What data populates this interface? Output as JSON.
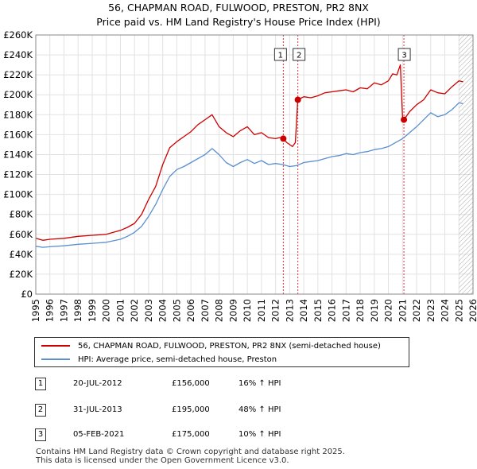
{
  "title_line1": "56, CHAPMAN ROAD, FULWOOD, PRESTON, PR2 8NX",
  "title_line2": "Price paid vs. HM Land Registry's House Price Index (HPI)",
  "colors": {
    "property": "#cc0000",
    "hpi": "#5a8fd0",
    "marker_line": "#cc0000",
    "hatch": "#999999"
  },
  "chart_data": {
    "type": "line",
    "title": "Price paid vs. HM Land Registry's House Price Index (HPI)",
    "xlabel": "",
    "ylabel": "",
    "xlim": [
      1995,
      2026
    ],
    "ylim": [
      0,
      260000
    ],
    "y_ticks": [
      0,
      20000,
      40000,
      60000,
      80000,
      100000,
      120000,
      140000,
      160000,
      180000,
      200000,
      220000,
      240000,
      260000
    ],
    "y_tick_labels": [
      "£0",
      "£20K",
      "£40K",
      "£60K",
      "£80K",
      "£100K",
      "£120K",
      "£140K",
      "£160K",
      "£180K",
      "£200K",
      "£220K",
      "£240K",
      "£260K"
    ],
    "x_ticks": [
      1995,
      1996,
      1997,
      1998,
      1999,
      2000,
      2001,
      2002,
      2003,
      2004,
      2005,
      2006,
      2007,
      2008,
      2009,
      2010,
      2011,
      2012,
      2013,
      2014,
      2015,
      2016,
      2017,
      2018,
      2019,
      2020,
      2021,
      2022,
      2023,
      2024,
      2025,
      2026
    ],
    "x_tick_labels": [
      "1995",
      "1996",
      "1997",
      "1998",
      "1999",
      "2000",
      "2001",
      "2002",
      "2003",
      "2004",
      "2005",
      "2006",
      "2007",
      "2008",
      "2009",
      "2010",
      "2011",
      "2012",
      "2013",
      "2014",
      "2015",
      "2016",
      "2017",
      "2018",
      "2019",
      "2020",
      "2021",
      "2022",
      "2023",
      "2024",
      "2025",
      "2026"
    ],
    "grid": true,
    "hatched_from": 2025.0,
    "series": [
      {
        "name": "56, CHAPMAN ROAD, FULWOOD, PRESTON, PR2 8NX (semi-detached house)",
        "x": [
          1995,
          1995.5,
          1996,
          1997,
          1998,
          1999,
          2000,
          2000.5,
          2001,
          2001.5,
          2002,
          2002.5,
          2003,
          2003.5,
          2004,
          2004.5,
          2005,
          2005.5,
          2006,
          2006.5,
          2007,
          2007.5,
          2008,
          2008.5,
          2009,
          2009.5,
          2010,
          2010.5,
          2011,
          2011.5,
          2012,
          2012.3,
          2012.55,
          2012.8,
          2013,
          2013.2,
          2013.4,
          2013.58,
          2014,
          2014.5,
          2015,
          2015.5,
          2016,
          2016.5,
          2017,
          2017.5,
          2018,
          2018.5,
          2019,
          2019.5,
          2020,
          2020.3,
          2020.6,
          2020.85,
          2021.0,
          2021.1,
          2021.5,
          2022,
          2022.5,
          2023,
          2023.5,
          2024,
          2024.5,
          2025,
          2025.3
        ],
        "values": [
          56000,
          54000,
          55000,
          56000,
          58000,
          59000,
          60000,
          62000,
          64000,
          67000,
          71000,
          80000,
          95000,
          108000,
          130000,
          147000,
          153000,
          158000,
          163000,
          170000,
          175000,
          180000,
          168000,
          162000,
          158000,
          164000,
          168000,
          160000,
          162000,
          157000,
          156000,
          157000,
          156000,
          152000,
          150000,
          148000,
          152000,
          195000,
          198000,
          197000,
          199000,
          202000,
          203000,
          204000,
          205000,
          203000,
          207000,
          206000,
          212000,
          210000,
          214000,
          221000,
          220000,
          230000,
          178000,
          175000,
          183000,
          190000,
          195000,
          205000,
          202000,
          201000,
          208000,
          214000,
          213000
        ]
      },
      {
        "name": "HPI: Average price, semi-detached house, Preston",
        "x": [
          1995,
          1995.5,
          1996,
          1997,
          1998,
          1999,
          2000,
          2000.5,
          2001,
          2001.5,
          2002,
          2002.5,
          2003,
          2003.5,
          2004,
          2004.5,
          2005,
          2005.5,
          2006,
          2006.5,
          2007,
          2007.5,
          2008,
          2008.5,
          2009,
          2009.5,
          2010,
          2010.5,
          2011,
          2011.5,
          2012,
          2012.5,
          2013,
          2013.5,
          2014,
          2014.5,
          2015,
          2015.5,
          2016,
          2016.5,
          2017,
          2017.5,
          2018,
          2018.5,
          2019,
          2019.5,
          2020,
          2020.5,
          2021,
          2021.5,
          2022,
          2022.5,
          2023,
          2023.5,
          2024,
          2024.5,
          2025,
          2025.3
        ],
        "values": [
          48000,
          47000,
          47500,
          48500,
          50000,
          51000,
          52000,
          53500,
          55000,
          58000,
          62000,
          68000,
          78000,
          90000,
          105000,
          118000,
          125000,
          128000,
          132000,
          136000,
          140000,
          146000,
          140000,
          132000,
          128000,
          132000,
          135000,
          131000,
          134000,
          130000,
          131000,
          130000,
          128000,
          129000,
          132000,
          133000,
          134000,
          136000,
          138000,
          139000,
          141000,
          140000,
          142000,
          143000,
          145000,
          146000,
          148000,
          152000,
          156000,
          162000,
          168000,
          175000,
          182000,
          178000,
          180000,
          185000,
          192000,
          191000
        ]
      }
    ],
    "sale_markers": [
      {
        "label": "1",
        "x": 2012.55,
        "value": 156000
      },
      {
        "label": "2",
        "x": 2013.58,
        "value": 195000
      },
      {
        "label": "3",
        "x": 2021.1,
        "value": 175000
      }
    ]
  },
  "legend": {
    "property_label": "56, CHAPMAN ROAD, FULWOOD, PRESTON, PR2 8NX (semi-detached house)",
    "hpi_label": "HPI: Average price, semi-detached house, Preston"
  },
  "sales": [
    {
      "num": "1",
      "date": "20-JUL-2012",
      "price": "£156,000",
      "hpi": "16% ↑ HPI"
    },
    {
      "num": "2",
      "date": "31-JUL-2013",
      "price": "£195,000",
      "hpi": "48% ↑ HPI"
    },
    {
      "num": "3",
      "date": "05-FEB-2021",
      "price": "£175,000",
      "hpi": "10% ↑ HPI"
    }
  ],
  "footer_line1": "Contains HM Land Registry data © Crown copyright and database right 2025.",
  "footer_line2": "This data is licensed under the Open Government Licence v3.0."
}
